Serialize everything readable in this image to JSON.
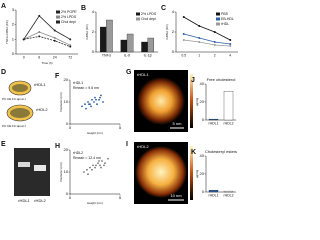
{
  "chart_data": [
    {
      "panel": "A",
      "type": "line",
      "ylabel": "TNFα mRNA (FC)",
      "xlabel": "Time (h)",
      "categories": [
        "0",
        "6",
        "24",
        "72"
      ],
      "series": [
        {
          "name": "2% POPE",
          "color": "#222222",
          "dash": false,
          "values": [
            1,
            2.6,
            1.6,
            1.0
          ]
        },
        {
          "name": "2% LPDS",
          "color": "#888888",
          "dash": false,
          "values": [
            1,
            1.5,
            1.1,
            0.6
          ]
        },
        {
          "name": "Chol depl",
          "color": "#222222",
          "dash": true,
          "values": [
            1,
            1.2,
            0.9,
            0.5
          ]
        }
      ],
      "ylim": [
        0,
        3
      ],
      "yticks": [
        0,
        1,
        2,
        3
      ]
    },
    {
      "panel": "B",
      "type": "bar",
      "ylabel": "mRNA (FC)",
      "categories": [
        "TNFα",
        "IL-6",
        "IL-1β"
      ],
      "series": [
        {
          "name": "2% LPDS",
          "color": "#1a1a1a",
          "values": [
            2.5,
            1.2,
            1.0
          ]
        },
        {
          "name": "Chol depl",
          "color": "#9a9a9a",
          "values": [
            3.2,
            1.8,
            1.4
          ]
        }
      ],
      "ylim": [
        0,
        4
      ],
      "yticks": [
        0,
        2,
        4
      ]
    },
    {
      "panel": "C",
      "type": "line",
      "ylabel": "mRNA (FC)",
      "categories": [
        "0.5",
        "1",
        "2",
        "4"
      ],
      "series": [
        {
          "name": "PBS",
          "color": "#111111",
          "dash": false,
          "values": [
            3.5,
            2.6,
            2.0,
            1.2
          ]
        },
        {
          "name": "EB-HDL",
          "color": "#2b5fa8",
          "dash": false,
          "values": [
            1.8,
            1.4,
            1.0,
            0.8
          ]
        },
        {
          "name": "rHDL",
          "color": "#9a9a9a",
          "dash": false,
          "values": [
            1.2,
            1.0,
            0.7,
            0.6
          ]
        }
      ],
      "ylim": [
        0,
        4
      ],
      "yticks": [
        0,
        2,
        4
      ]
    },
    {
      "panel": "F",
      "type": "scatter",
      "xlabel": "Height (nm)",
      "ylabel": "Diameter (nm)",
      "color": "#2b5fa8",
      "annotations": [
        "rHDL1",
        "Rmean = 9.6 nm"
      ],
      "x": [
        1.2,
        1.5,
        1.8,
        2.0,
        2.2,
        2.4,
        2.5,
        2.7,
        2.9,
        3.1,
        3.3,
        1.6,
        2.1,
        2.6,
        3.0,
        1.9
      ],
      "y": [
        8,
        9,
        10,
        9,
        11,
        10,
        12,
        9,
        11,
        13,
        10,
        7,
        8,
        11,
        12,
        9
      ],
      "xlim": [
        0,
        5
      ],
      "xticks": [
        0,
        5
      ],
      "ylim": [
        0,
        20
      ],
      "yticks": [
        0,
        10,
        20
      ]
    },
    {
      "panel": "H",
      "type": "scatter",
      "xlabel": "Height (nm)",
      "ylabel": "Diameter (nm)",
      "color": "#777777",
      "annotations": [
        "rHDL2",
        "Rmean = 12.4 nm"
      ],
      "x": [
        1.4,
        1.7,
        2.0,
        2.3,
        2.5,
        2.8,
        3.0,
        3.2,
        3.5,
        3.8,
        2.2,
        2.6,
        3.1,
        1.8,
        2.9,
        3.4
      ],
      "y": [
        10,
        11,
        12,
        13,
        12,
        14,
        13,
        15,
        14,
        16,
        11,
        13,
        12,
        9,
        15,
        13
      ],
      "xlim": [
        0,
        5
      ],
      "xticks": [
        0,
        5
      ],
      "ylim": [
        0,
        20
      ],
      "yticks": [
        0,
        10,
        20
      ]
    },
    {
      "panel": "J",
      "type": "bar",
      "title": "Free cholesterol",
      "ylabel": "µg/mg",
      "categories": [
        "rHDL1",
        "rHDL2"
      ],
      "series": [
        {
          "name": "Free cholesterol",
          "colors": [
            "#2b5fa8",
            "#ffffff"
          ],
          "values": [
            1,
            32
          ]
        }
      ],
      "ylim": [
        0,
        40
      ],
      "yticks": [
        0,
        20,
        40
      ]
    },
    {
      "panel": "K",
      "type": "bar",
      "title": "Cholesteryl esters",
      "ylabel": "µg/mg",
      "categories": [
        "rHDL1",
        "rHDL2"
      ],
      "series": [
        {
          "name": "Cholesteryl esters",
          "colors": [
            "#2b5fa8",
            "#ffffff"
          ],
          "values": [
            2,
            1
          ]
        }
      ],
      "ylim": [
        0,
        40
      ],
      "yticks": [
        0,
        20,
        40
      ]
    }
  ],
  "figure": {
    "D": {
      "panel": "D",
      "disc1": "rHDL1",
      "comp1": "PC:CE:FC:apoA-I",
      "disc2": "rHDL2",
      "comp2": "PC:CE:FC:apoA-I"
    },
    "E": {
      "panel": "E",
      "lanes": [
        "rHDL1",
        "rHDL2"
      ]
    },
    "G": {
      "panel": "G",
      "label": "rHDL1",
      "scale": "5 nm"
    },
    "I": {
      "panel": "I",
      "label": "rHDL2",
      "scale": "10 nm"
    }
  }
}
